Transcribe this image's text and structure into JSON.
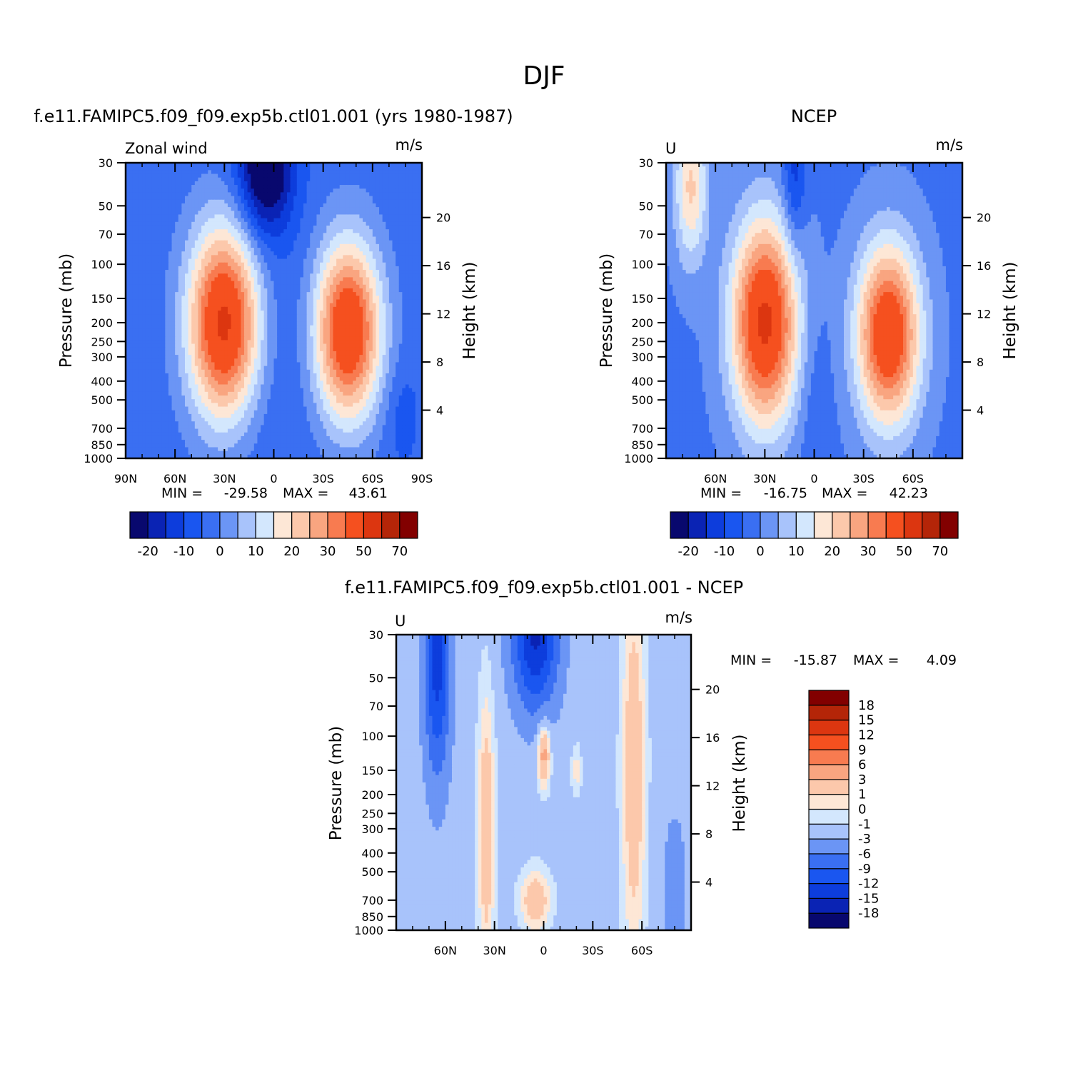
{
  "figure": {
    "title": "DJF",
    "colors": {
      "wind": [
        "#08086e",
        "#0a23b4",
        "#0d3ddc",
        "#1a56f0",
        "#3a6ff2",
        "#6b95f5",
        "#a8c3fb",
        "#d3e7fd",
        "#fde7d6",
        "#fcc8ab",
        "#f9a580",
        "#f87b50",
        "#f5501f",
        "#dc3610",
        "#b42508",
        "#820000"
      ]
    }
  },
  "chart_data": [
    {
      "type": "heatmap",
      "name": "model",
      "title": "f.e11.FAMIPC5.f09_f09.exp5b.ctl01.001 (yrs 1980-1987)",
      "corner_left": "Zonal wind",
      "corner_right": "m/s",
      "xlabel": "",
      "ylabel": "Pressure (mb)",
      "ylabel_right": "Height (km)",
      "x_ticks": [
        "90N",
        "60N",
        "30N",
        "0",
        "30S",
        "60S",
        "90S"
      ],
      "x_tick_values": [
        90,
        60,
        30,
        0,
        -30,
        -60,
        -90
      ],
      "xlim": [
        90,
        -90
      ],
      "y_ticks": [
        "30",
        "50",
        "70",
        "100",
        "150",
        "200",
        "250",
        "300",
        "400",
        "500",
        "700",
        "850",
        "1000"
      ],
      "y_tick_values": [
        30,
        50,
        70,
        100,
        150,
        200,
        250,
        300,
        400,
        500,
        700,
        850,
        1000
      ],
      "ylim": [
        1000,
        30
      ],
      "height_ticks": [
        "20",
        "16",
        "12",
        "8",
        "4"
      ],
      "height_tick_values": [
        20,
        16,
        12,
        8,
        4
      ],
      "min_label": "MIN =",
      "min_value": "-29.58",
      "max_label": "MAX =",
      "max_value": "43.61",
      "levels": [
        -25,
        -20,
        -15,
        -10,
        -5,
        0,
        5,
        10,
        15,
        20,
        25,
        30,
        40,
        50,
        60,
        70
      ],
      "colorbar_labels": [
        "-20",
        "-10",
        "0",
        "10",
        "20",
        "30",
        "50",
        "70"
      ],
      "background": -8,
      "features": [
        {
          "lat": 30,
          "p": 200,
          "amp": 52,
          "wlat": 22,
          "wz": 1.15
        },
        {
          "lat": -45,
          "p": 220,
          "amp": 48,
          "wlat": 20,
          "wz": 1.05
        },
        {
          "lat": 5,
          "p": 30,
          "amp": -28,
          "wlat": 16,
          "wz": 0.8
        },
        {
          "lat": 8,
          "p": 200,
          "amp": -4,
          "wlat": 30,
          "wz": 2.0
        },
        {
          "lat": -78,
          "p": 600,
          "amp": -5,
          "wlat": 10,
          "wz": 0.6
        }
      ]
    },
    {
      "type": "heatmap",
      "name": "obs",
      "title": "NCEP",
      "corner_left": "U",
      "corner_right": "m/s",
      "xlabel": "",
      "ylabel": "Pressure (mb)",
      "ylabel_right": "Height (km)",
      "x_ticks": [
        "60N",
        "30N",
        "0",
        "30S",
        "60S"
      ],
      "x_tick_values": [
        60,
        30,
        0,
        -30,
        -60
      ],
      "xlim": [
        90,
        -90
      ],
      "y_ticks": [
        "30",
        "50",
        "70",
        "100",
        "150",
        "200",
        "250",
        "300",
        "400",
        "500",
        "700",
        "850",
        "1000"
      ],
      "y_tick_values": [
        30,
        50,
        70,
        100,
        150,
        200,
        250,
        300,
        400,
        500,
        700,
        850,
        1000
      ],
      "ylim": [
        1000,
        30
      ],
      "height_ticks": [
        "20",
        "16",
        "12",
        "8",
        "4"
      ],
      "height_tick_values": [
        20,
        16,
        12,
        8,
        4
      ],
      "min_label": "MIN =",
      "min_value": "-16.75",
      "max_label": "MAX =",
      "max_value": "42.23",
      "levels": [
        -25,
        -20,
        -15,
        -10,
        -5,
        0,
        5,
        10,
        15,
        20,
        25,
        30,
        40,
        50,
        60,
        70
      ],
      "colorbar_labels": [
        "-20",
        "-10",
        "0",
        "10",
        "20",
        "30",
        "50",
        "70"
      ],
      "background": -6,
      "features": [
        {
          "lat": 30,
          "p": 200,
          "amp": 48,
          "wlat": 20,
          "wz": 1.2
        },
        {
          "lat": -45,
          "p": 230,
          "amp": 45,
          "wlat": 19,
          "wz": 1.05
        },
        {
          "lat": 75,
          "p": 40,
          "amp": 22,
          "wlat": 10,
          "wz": 0.9
        },
        {
          "lat": 12,
          "p": 35,
          "amp": -12,
          "wlat": 7,
          "wz": 0.9
        },
        {
          "lat": 0,
          "p": 500,
          "amp": -4,
          "wlat": 10,
          "wz": 1.2
        }
      ]
    },
    {
      "type": "heatmap",
      "name": "diff",
      "title": "f.e11.FAMIPC5.f09_f09.exp5b.ctl01.001 - NCEP",
      "corner_left": "U",
      "corner_right": "m/s",
      "xlabel": "",
      "ylabel": "Pressure (mb)",
      "ylabel_right": "Height (km)",
      "x_ticks": [
        "60N",
        "30N",
        "0",
        "30S",
        "60S"
      ],
      "x_tick_values": [
        60,
        30,
        0,
        -30,
        -60
      ],
      "xlim": [
        90,
        -90
      ],
      "y_ticks": [
        "30",
        "50",
        "70",
        "100",
        "150",
        "200",
        "250",
        "300",
        "400",
        "500",
        "700",
        "850",
        "1000"
      ],
      "y_tick_values": [
        30,
        50,
        70,
        100,
        150,
        200,
        250,
        300,
        400,
        500,
        700,
        850,
        1000
      ],
      "ylim": [
        1000,
        30
      ],
      "height_ticks": [
        "20",
        "16",
        "12",
        "8",
        "4"
      ],
      "height_tick_values": [
        20,
        16,
        12,
        8,
        4
      ],
      "min_label": "MIN =",
      "min_value": "-15.87",
      "max_label": "MAX =",
      "max_value": "4.09",
      "levels": [
        -18,
        -15,
        -12,
        -9,
        -6,
        -3,
        -1,
        0,
        1,
        3,
        6,
        9,
        12,
        15,
        18
      ],
      "colorbar_labels": [
        "18",
        "15",
        "12",
        "9",
        "6",
        "3",
        "1",
        "0",
        "-1",
        "-3",
        "-6",
        "-9",
        "-12",
        "-15",
        "-18"
      ],
      "background": -1.5,
      "features": [
        {
          "lat": 65,
          "p": 40,
          "amp": -12,
          "wlat": 8,
          "wz": 1.4
        },
        {
          "lat": 5,
          "p": 30,
          "amp": -14,
          "wlat": 14,
          "wz": 0.9
        },
        {
          "lat": 35,
          "p": 300,
          "amp": 4,
          "wlat": 5,
          "wz": 1.6
        },
        {
          "lat": -55,
          "p": 150,
          "amp": 4,
          "wlat": 7,
          "wz": 2.2
        },
        {
          "lat": 0,
          "p": 120,
          "amp": 6,
          "wlat": 4,
          "wz": 0.4
        },
        {
          "lat": 5,
          "p": 700,
          "amp": 4,
          "wlat": 9,
          "wz": 0.35
        },
        {
          "lat": -20,
          "p": 150,
          "amp": 2,
          "wlat": 3,
          "wz": 0.3
        },
        {
          "lat": -80,
          "p": 600,
          "amp": -3,
          "wlat": 8,
          "wz": 1.0
        }
      ]
    }
  ]
}
